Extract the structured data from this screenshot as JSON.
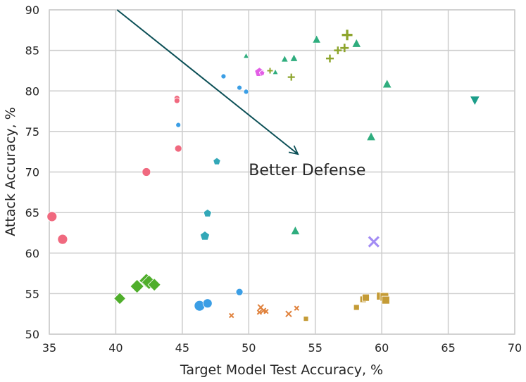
{
  "chart_data": {
    "type": "scatter",
    "title": "",
    "xlabel": "Target Model Test Accuracy, %",
    "ylabel": "Attack Accuracy, %",
    "xlim": [
      35,
      70
    ],
    "ylim": [
      50,
      90
    ],
    "xticks": [
      35,
      40,
      45,
      50,
      55,
      60,
      65,
      70
    ],
    "yticks": [
      50,
      55,
      60,
      65,
      70,
      75,
      80,
      85,
      90
    ],
    "grid": true,
    "annotation": {
      "text": "Better Defense",
      "arrow_from": [
        40.1,
        90.0
      ],
      "arrow_to": [
        53.7,
        72.2
      ],
      "text_at": [
        50.0,
        70.3
      ]
    },
    "series": [
      {
        "name": "circle-pink",
        "marker": "circle",
        "color": "#f0697f",
        "points": [
          {
            "x": 35.2,
            "y": 64.5,
            "s": 7
          },
          {
            "x": 36.0,
            "y": 61.7,
            "s": 7
          },
          {
            "x": 42.3,
            "y": 70.0,
            "s": 6
          },
          {
            "x": 44.6,
            "y": 79.1,
            "s": 4
          },
          {
            "x": 44.6,
            "y": 78.8,
            "s": 4
          },
          {
            "x": 44.7,
            "y": 72.9,
            "s": 5
          }
        ]
      },
      {
        "name": "circle-blue",
        "marker": "circle",
        "color": "#3b9ee5",
        "points": [
          {
            "x": 44.7,
            "y": 75.8,
            "s": 3.5
          },
          {
            "x": 48.1,
            "y": 81.8,
            "s": 3.5
          },
          {
            "x": 49.3,
            "y": 80.4,
            "s": 3.5
          },
          {
            "x": 49.8,
            "y": 79.9,
            "s": 3.5
          },
          {
            "x": 49.3,
            "y": 55.2,
            "s": 5
          },
          {
            "x": 46.3,
            "y": 53.5,
            "s": 7.5
          },
          {
            "x": 46.9,
            "y": 53.8,
            "s": 6.5
          }
        ]
      },
      {
        "name": "pentagon-teal",
        "marker": "pentagon",
        "color": "#33a8b8",
        "points": [
          {
            "x": 47.6,
            "y": 71.3,
            "s": 5.5
          },
          {
            "x": 46.9,
            "y": 64.9,
            "s": 6
          },
          {
            "x": 46.7,
            "y": 62.1,
            "s": 7
          }
        ]
      },
      {
        "name": "pentagon-magenta",
        "marker": "pentagon",
        "color": "#e35ee6",
        "points": [
          {
            "x": 50.8,
            "y": 82.3,
            "s": 7
          },
          {
            "x": 51.0,
            "y": 82.2,
            "s": 4
          }
        ]
      },
      {
        "name": "triangle-up-green",
        "marker": "triangle-up",
        "color": "#2fad7e",
        "points": [
          {
            "x": 49.8,
            "y": 84.3,
            "s": 4
          },
          {
            "x": 52.0,
            "y": 82.3,
            "s": 4
          },
          {
            "x": 52.7,
            "y": 83.9,
            "s": 5
          },
          {
            "x": 53.4,
            "y": 84.0,
            "s": 5.5
          },
          {
            "x": 55.1,
            "y": 86.3,
            "s": 6
          },
          {
            "x": 58.1,
            "y": 85.8,
            "s": 6.5
          },
          {
            "x": 60.4,
            "y": 80.8,
            "s": 6.5
          },
          {
            "x": 59.2,
            "y": 74.3,
            "s": 6.5
          },
          {
            "x": 53.5,
            "y": 62.7,
            "s": 6.5
          }
        ]
      },
      {
        "name": "plus-olive",
        "marker": "plus",
        "color": "#8ea52e",
        "points": [
          {
            "x": 51.6,
            "y": 82.5,
            "s": 4
          },
          {
            "x": 53.2,
            "y": 81.7,
            "s": 5
          },
          {
            "x": 56.1,
            "y": 84.0,
            "s": 5.5
          },
          {
            "x": 56.7,
            "y": 85.0,
            "s": 5.5
          },
          {
            "x": 57.2,
            "y": 85.3,
            "s": 6
          },
          {
            "x": 57.4,
            "y": 86.9,
            "s": 7.5
          }
        ]
      },
      {
        "name": "triangle-down-teal",
        "marker": "triangle-down",
        "color": "#1c9e8a",
        "points": [
          {
            "x": 67.0,
            "y": 78.9,
            "s": 7
          }
        ]
      },
      {
        "name": "x-purple",
        "marker": "x",
        "color": "#a38cf4",
        "points": [
          {
            "x": 59.4,
            "y": 61.4,
            "s": 7
          }
        ]
      },
      {
        "name": "diamond-green",
        "marker": "diamond",
        "color": "#4fae2b",
        "points": [
          {
            "x": 40.3,
            "y": 54.4,
            "s": 7
          },
          {
            "x": 41.6,
            "y": 55.9,
            "s": 8
          },
          {
            "x": 42.3,
            "y": 56.6,
            "s": 8.5
          },
          {
            "x": 42.5,
            "y": 56.4,
            "s": 8.5
          },
          {
            "x": 42.9,
            "y": 56.1,
            "s": 7.5
          }
        ]
      },
      {
        "name": "x-orange",
        "marker": "x",
        "color": "#e0823d",
        "points": [
          {
            "x": 48.7,
            "y": 52.3,
            "s": 3
          },
          {
            "x": 50.9,
            "y": 53.3,
            "s": 4
          },
          {
            "x": 51.1,
            "y": 52.9,
            "s": 3.5
          },
          {
            "x": 50.8,
            "y": 52.7,
            "s": 3
          },
          {
            "x": 51.3,
            "y": 52.8,
            "s": 3
          },
          {
            "x": 53.0,
            "y": 52.5,
            "s": 4
          },
          {
            "x": 53.6,
            "y": 53.2,
            "s": 3
          }
        ]
      },
      {
        "name": "square-gold",
        "marker": "square",
        "color": "#c49b36",
        "points": [
          {
            "x": 54.3,
            "y": 51.9,
            "s": 3.5
          },
          {
            "x": 58.1,
            "y": 53.3,
            "s": 4
          },
          {
            "x": 58.6,
            "y": 54.3,
            "s": 4.5
          },
          {
            "x": 58.8,
            "y": 54.5,
            "s": 5
          },
          {
            "x": 59.9,
            "y": 54.7,
            "s": 5.5
          },
          {
            "x": 60.2,
            "y": 54.6,
            "s": 6
          },
          {
            "x": 60.3,
            "y": 54.2,
            "s": 5.5
          }
        ]
      }
    ]
  }
}
